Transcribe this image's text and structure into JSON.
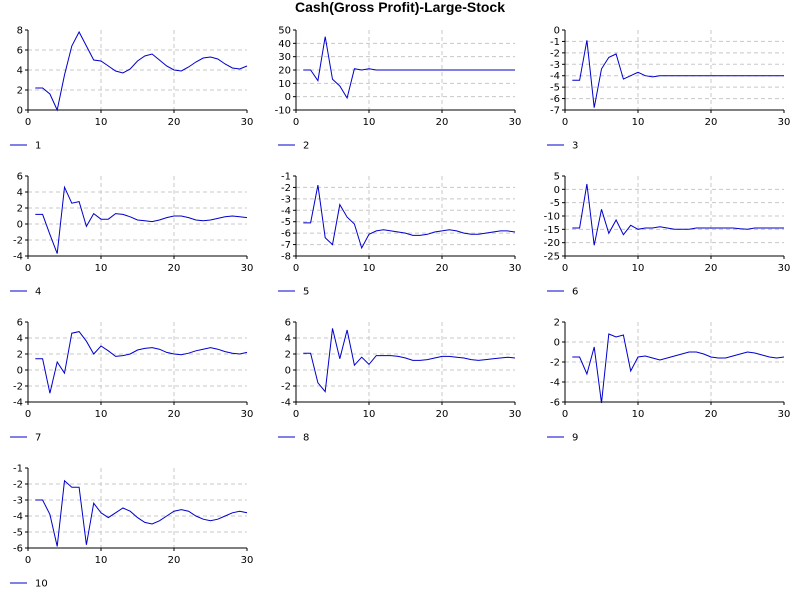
{
  "title": "Cash(Gross Profit)-Large-Stock",
  "line_color": "#0000cc",
  "chart_data": [
    {
      "type": "line",
      "legend": "1",
      "xlim": [
        0,
        30
      ],
      "ylim": [
        0,
        8
      ],
      "xticks": [
        0,
        10,
        20,
        30
      ],
      "yticks": [
        0,
        2,
        4,
        6,
        8
      ],
      "x": [
        1,
        2,
        3,
        4,
        5,
        6,
        7,
        8,
        9,
        10,
        11,
        12,
        13,
        14,
        15,
        16,
        17,
        18,
        19,
        20,
        21,
        22,
        23,
        24,
        25,
        26,
        27,
        28,
        29,
        30
      ],
      "y": [
        2.2,
        2.2,
        1.6,
        0.0,
        3.5,
        6.4,
        7.8,
        6.4,
        5.0,
        4.9,
        4.4,
        3.9,
        3.7,
        4.1,
        4.9,
        5.4,
        5.6,
        5.0,
        4.4,
        4.0,
        3.9,
        4.3,
        4.8,
        5.2,
        5.3,
        5.1,
        4.6,
        4.2,
        4.1,
        4.4
      ]
    },
    {
      "type": "line",
      "legend": "2",
      "xlim": [
        0,
        30
      ],
      "ylim": [
        -10,
        50
      ],
      "xticks": [
        0,
        10,
        20,
        30
      ],
      "yticks": [
        -10,
        0,
        10,
        20,
        30,
        40,
        50
      ],
      "x": [
        1,
        2,
        3,
        4,
        5,
        6,
        7,
        8,
        9,
        10,
        11,
        12,
        13,
        14,
        15,
        16,
        17,
        18,
        19,
        20,
        21,
        22,
        23,
        24,
        25,
        26,
        27,
        28,
        29,
        30
      ],
      "y": [
        20,
        20,
        12,
        45,
        13,
        8,
        -1,
        21,
        20,
        21,
        20,
        20,
        20,
        20,
        20,
        20,
        20,
        20,
        20,
        20,
        20,
        20,
        20,
        20,
        20,
        20,
        20,
        20,
        20,
        20
      ]
    },
    {
      "type": "line",
      "legend": "3",
      "xlim": [
        0,
        30
      ],
      "ylim": [
        -7,
        0
      ],
      "xticks": [
        0,
        10,
        20,
        30
      ],
      "yticks": [
        -7,
        -6,
        -5,
        -4,
        -3,
        -2,
        -1,
        0
      ],
      "x": [
        1,
        2,
        3,
        4,
        5,
        6,
        7,
        8,
        9,
        10,
        11,
        12,
        13,
        14,
        15,
        16,
        17,
        18,
        19,
        20,
        21,
        22,
        23,
        24,
        25,
        26,
        27,
        28,
        29,
        30
      ],
      "y": [
        -4.4,
        -4.4,
        -0.9,
        -6.8,
        -3.4,
        -2.4,
        -2.1,
        -4.3,
        -4.0,
        -3.7,
        -4.0,
        -4.1,
        -4.0,
        -4.0,
        -4.0,
        -4.0,
        -4.0,
        -4.0,
        -4.0,
        -4.0,
        -4.0,
        -4.0,
        -4.0,
        -4.0,
        -4.0,
        -4.0,
        -4.0,
        -4.0,
        -4.0,
        -4.0
      ]
    },
    {
      "type": "line",
      "legend": "4",
      "xlim": [
        0,
        30
      ],
      "ylim": [
        -4,
        6
      ],
      "xticks": [
        0,
        10,
        20,
        30
      ],
      "yticks": [
        -4,
        -2,
        0,
        2,
        4,
        6
      ],
      "x": [
        1,
        2,
        3,
        4,
        5,
        6,
        7,
        8,
        9,
        10,
        11,
        12,
        13,
        14,
        15,
        16,
        17,
        18,
        19,
        20,
        21,
        22,
        23,
        24,
        25,
        26,
        27,
        28,
        29,
        30
      ],
      "y": [
        1.2,
        1.2,
        -1.3,
        -3.7,
        4.6,
        2.6,
        2.8,
        -0.3,
        1.3,
        0.6,
        0.6,
        1.3,
        1.2,
        0.9,
        0.5,
        0.4,
        0.3,
        0.5,
        0.8,
        1.0,
        1.0,
        0.8,
        0.5,
        0.4,
        0.5,
        0.7,
        0.9,
        1.0,
        0.9,
        0.8
      ]
    },
    {
      "type": "line",
      "legend": "5",
      "xlim": [
        0,
        30
      ],
      "ylim": [
        -8,
        -1
      ],
      "xticks": [
        0,
        10,
        20,
        30
      ],
      "yticks": [
        -8,
        -7,
        -6,
        -5,
        -4,
        -3,
        -2,
        -1
      ],
      "x": [
        1,
        2,
        3,
        4,
        5,
        6,
        7,
        8,
        9,
        10,
        11,
        12,
        13,
        14,
        15,
        16,
        17,
        18,
        19,
        20,
        21,
        22,
        23,
        24,
        25,
        26,
        27,
        28,
        29,
        30
      ],
      "y": [
        -5.1,
        -5.1,
        -1.8,
        -6.4,
        -7.0,
        -3.5,
        -4.6,
        -5.2,
        -7.3,
        -6.1,
        -5.8,
        -5.7,
        -5.8,
        -5.9,
        -6.0,
        -6.2,
        -6.2,
        -6.1,
        -5.9,
        -5.8,
        -5.7,
        -5.8,
        -6.0,
        -6.1,
        -6.1,
        -6.0,
        -5.9,
        -5.8,
        -5.8,
        -5.9
      ]
    },
    {
      "type": "line",
      "legend": "6",
      "xlim": [
        0,
        30
      ],
      "ylim": [
        -25,
        5
      ],
      "xticks": [
        0,
        10,
        20,
        30
      ],
      "yticks": [
        -25,
        -20,
        -15,
        -10,
        -5,
        0,
        5
      ],
      "x": [
        1,
        2,
        3,
        4,
        5,
        6,
        7,
        8,
        9,
        10,
        11,
        12,
        13,
        14,
        15,
        16,
        17,
        18,
        19,
        20,
        21,
        22,
        23,
        24,
        25,
        26,
        27,
        28,
        29,
        30
      ],
      "y": [
        -14.5,
        -14.5,
        2.0,
        -21.0,
        -7.5,
        -16.5,
        -11.5,
        -17.0,
        -13.5,
        -15.0,
        -14.5,
        -14.5,
        -14.0,
        -14.5,
        -15.0,
        -15.0,
        -15.0,
        -14.5,
        -14.5,
        -14.5,
        -14.5,
        -14.5,
        -14.5,
        -14.8,
        -15.0,
        -14.5,
        -14.5,
        -14.5,
        -14.5,
        -14.5
      ]
    },
    {
      "type": "line",
      "legend": "7",
      "xlim": [
        0,
        30
      ],
      "ylim": [
        -4,
        6
      ],
      "xticks": [
        0,
        10,
        20,
        30
      ],
      "yticks": [
        -4,
        -2,
        0,
        2,
        4,
        6
      ],
      "x": [
        1,
        2,
        3,
        4,
        5,
        6,
        7,
        8,
        9,
        10,
        11,
        12,
        13,
        14,
        15,
        16,
        17,
        18,
        19,
        20,
        21,
        22,
        23,
        24,
        25,
        26,
        27,
        28,
        29,
        30
      ],
      "y": [
        1.4,
        1.4,
        -2.9,
        1.0,
        -0.4,
        4.6,
        4.8,
        3.6,
        2.0,
        3.0,
        2.4,
        1.7,
        1.8,
        2.0,
        2.5,
        2.7,
        2.8,
        2.6,
        2.2,
        2.0,
        1.9,
        2.1,
        2.4,
        2.6,
        2.8,
        2.6,
        2.3,
        2.1,
        2.0,
        2.2
      ]
    },
    {
      "type": "line",
      "legend": "8",
      "xlim": [
        0,
        30
      ],
      "ylim": [
        -4,
        6
      ],
      "xticks": [
        0,
        10,
        20,
        30
      ],
      "yticks": [
        -4,
        -2,
        0,
        2,
        4,
        6
      ],
      "x": [
        1,
        2,
        3,
        4,
        5,
        6,
        7,
        8,
        9,
        10,
        11,
        12,
        13,
        14,
        15,
        16,
        17,
        18,
        19,
        20,
        21,
        22,
        23,
        24,
        25,
        26,
        27,
        28,
        29,
        30
      ],
      "y": [
        2.1,
        2.1,
        -1.6,
        -2.7,
        5.2,
        1.4,
        5.0,
        0.6,
        1.6,
        0.7,
        1.8,
        1.8,
        1.8,
        1.7,
        1.5,
        1.2,
        1.2,
        1.3,
        1.5,
        1.7,
        1.7,
        1.6,
        1.5,
        1.3,
        1.2,
        1.3,
        1.4,
        1.5,
        1.6,
        1.5
      ]
    },
    {
      "type": "line",
      "legend": "9",
      "xlim": [
        0,
        30
      ],
      "ylim": [
        -6,
        2
      ],
      "xticks": [
        0,
        10,
        20,
        30
      ],
      "yticks": [
        -6,
        -4,
        -2,
        0,
        2
      ],
      "x": [
        1,
        2,
        3,
        4,
        5,
        6,
        7,
        8,
        9,
        10,
        11,
        12,
        13,
        14,
        15,
        16,
        17,
        18,
        19,
        20,
        21,
        22,
        23,
        24,
        25,
        26,
        27,
        28,
        29,
        30
      ],
      "y": [
        -1.5,
        -1.5,
        -3.2,
        -0.5,
        -6.1,
        0.8,
        0.5,
        0.7,
        -2.9,
        -1.5,
        -1.4,
        -1.6,
        -1.8,
        -1.6,
        -1.4,
        -1.2,
        -1.0,
        -1.0,
        -1.2,
        -1.5,
        -1.6,
        -1.6,
        -1.4,
        -1.2,
        -1.0,
        -1.1,
        -1.3,
        -1.5,
        -1.6,
        -1.5
      ]
    },
    {
      "type": "line",
      "legend": "10",
      "xlim": [
        0,
        30
      ],
      "ylim": [
        -6,
        -1
      ],
      "xticks": [
        0,
        10,
        20,
        30
      ],
      "yticks": [
        -6,
        -5,
        -4,
        -3,
        -2,
        -1
      ],
      "x": [
        1,
        2,
        3,
        4,
        5,
        6,
        7,
        8,
        9,
        10,
        11,
        12,
        13,
        14,
        15,
        16,
        17,
        18,
        19,
        20,
        21,
        22,
        23,
        24,
        25,
        26,
        27,
        28,
        29,
        30
      ],
      "y": [
        -3.0,
        -3.0,
        -3.9,
        -5.9,
        -1.8,
        -2.2,
        -2.2,
        -5.8,
        -3.2,
        -3.8,
        -4.1,
        -3.8,
        -3.5,
        -3.7,
        -4.1,
        -4.4,
        -4.5,
        -4.3,
        -4.0,
        -3.7,
        -3.6,
        -3.7,
        -4.0,
        -4.2,
        -4.3,
        -4.2,
        -4.0,
        -3.8,
        -3.7,
        -3.8
      ]
    }
  ]
}
